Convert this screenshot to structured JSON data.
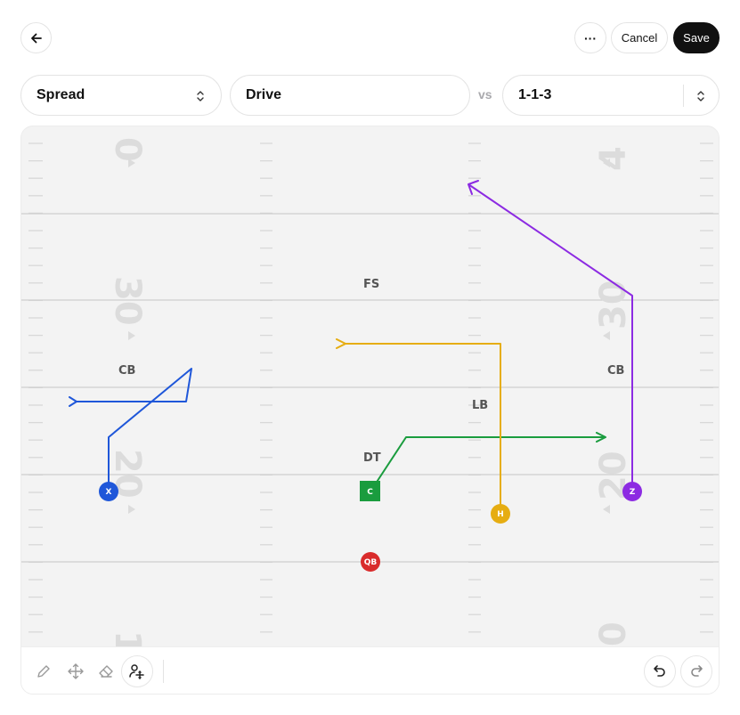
{
  "header": {
    "more_label": "···",
    "cancel_label": "Cancel",
    "save_label": "Save"
  },
  "selectors": {
    "formation": "Spread",
    "play_name": "Drive",
    "vs_label": "vs",
    "defense": "1-1-3"
  },
  "field": {
    "yard_numbers": [
      "0",
      "4",
      "30",
      "30",
      "20",
      "20",
      "1",
      "0"
    ],
    "positions": {
      "fs": "FS",
      "cb_left": "CB",
      "cb_right": "CB",
      "lb": "LB",
      "dt": "DT"
    },
    "players": {
      "x": "X",
      "c": "C",
      "h": "H",
      "z": "Z",
      "qb": "QB"
    }
  },
  "colors": {
    "x_route": "#1f57d9",
    "c_route": "#1a9c3e",
    "h_route": "#e6ad12",
    "z_route": "#8c2be2",
    "qb": "#d92b2b",
    "save_bg": "#111111"
  },
  "icons": {
    "back": "arrow-left-icon",
    "more": "ellipsis-icon",
    "select": "chevron-updown-icon",
    "pencil": "pencil-icon",
    "move": "move-icon",
    "eraser": "eraser-icon",
    "add_player": "add-player-icon",
    "undo": "undo-icon",
    "redo": "redo-icon"
  }
}
